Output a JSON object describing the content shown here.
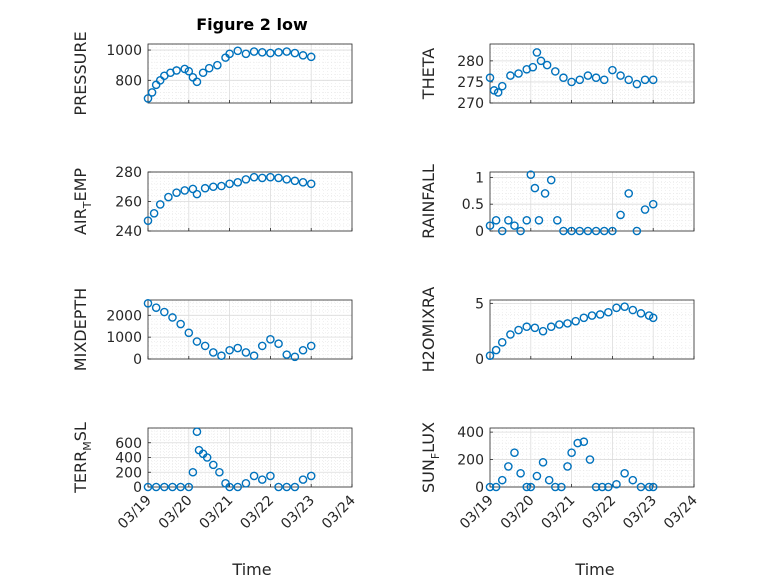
{
  "figure": {
    "title": "Figure 2 low",
    "xlabel": "Time"
  },
  "x_ticks": [
    "03/19",
    "03/20",
    "03/21",
    "03/22",
    "03/23",
    "03/24"
  ],
  "colors": {
    "marker": "#0072bd",
    "axis": "#262626",
    "grid": "#dcdcdc"
  },
  "chart_data": [
    {
      "type": "scatter",
      "id": "pressure",
      "ylabel": "PRESSURE",
      "ylabel_sub": "",
      "ylim": [
        650,
        1040
      ],
      "yticks": [
        800,
        1000
      ],
      "x": [
        0,
        0.1,
        0.2,
        0.3,
        0.4,
        0.55,
        0.7,
        0.9,
        1.0,
        1.1,
        1.2,
        1.35,
        1.5,
        1.7,
        1.9,
        2.0,
        2.2,
        2.4,
        2.6,
        2.8,
        3.0,
        3.2,
        3.4,
        3.6,
        3.8,
        4.0
      ],
      "y": [
        680,
        720,
        770,
        800,
        830,
        850,
        865,
        875,
        860,
        820,
        790,
        850,
        880,
        900,
        950,
        975,
        995,
        975,
        990,
        985,
        980,
        985,
        990,
        980,
        965,
        955
      ]
    },
    {
      "type": "scatter",
      "id": "theta",
      "ylabel": "THETA",
      "ylabel_sub": "",
      "ylim": [
        270,
        284
      ],
      "yticks": [
        270,
        275,
        280
      ],
      "x": [
        0,
        0.1,
        0.2,
        0.3,
        0.5,
        0.7,
        0.9,
        1.05,
        1.15,
        1.25,
        1.4,
        1.6,
        1.8,
        2.0,
        2.2,
        2.4,
        2.6,
        2.8,
        3.0,
        3.2,
        3.4,
        3.6,
        3.8,
        4.0
      ],
      "y": [
        276,
        273,
        272.5,
        274,
        276.5,
        277,
        278,
        278.5,
        282,
        280,
        279,
        277.5,
        276,
        275,
        275.5,
        276.5,
        276,
        275.5,
        277.8,
        276.5,
        275.5,
        274.5,
        275.5,
        275.5
      ]
    },
    {
      "type": "scatter",
      "id": "air_temp",
      "ylabel": "AIR",
      "ylabel_sub": "T",
      "ylabel_rest": "EMP",
      "ylim": [
        240,
        280
      ],
      "yticks": [
        240,
        260,
        280
      ],
      "x": [
        0,
        0.15,
        0.3,
        0.5,
        0.7,
        0.9,
        1.1,
        1.2,
        1.4,
        1.6,
        1.8,
        2.0,
        2.2,
        2.4,
        2.6,
        2.8,
        3.0,
        3.2,
        3.4,
        3.6,
        3.8,
        4.0
      ],
      "y": [
        247,
        252,
        258,
        263,
        266,
        267.5,
        268.5,
        265,
        269,
        270,
        270.5,
        272,
        273,
        275,
        276.5,
        276,
        276.5,
        276,
        275,
        274,
        273,
        272
      ]
    },
    {
      "type": "scatter",
      "id": "rainfall",
      "ylabel": "RAINFALL",
      "ylabel_sub": "",
      "ylim": [
        0,
        1.1
      ],
      "yticks": [
        0,
        0.5,
        1
      ],
      "x": [
        0,
        0.15,
        0.3,
        0.45,
        0.6,
        0.75,
        0.9,
        1.0,
        1.1,
        1.2,
        1.35,
        1.5,
        1.65,
        1.8,
        2.0,
        2.2,
        2.4,
        2.6,
        2.8,
        3.0,
        3.2,
        3.4,
        3.6,
        3.8,
        4.0
      ],
      "y": [
        0.1,
        0.2,
        0,
        0.2,
        0.1,
        0,
        0.2,
        1.05,
        0.8,
        0.2,
        0.7,
        0.95,
        0.2,
        0,
        0,
        0,
        0,
        0,
        0,
        0,
        0.3,
        0.7,
        0,
        0.4,
        0.5
      ]
    },
    {
      "type": "scatter",
      "id": "mixdepth",
      "ylabel": "MIXDEPTH",
      "ylabel_sub": "",
      "ylim": [
        0,
        2700
      ],
      "yticks": [
        0,
        1000,
        2000
      ],
      "x": [
        0,
        0.2,
        0.4,
        0.6,
        0.8,
        1.0,
        1.2,
        1.4,
        1.6,
        1.8,
        2.0,
        2.2,
        2.4,
        2.6,
        2.8,
        3.0,
        3.2,
        3.4,
        3.6,
        3.8,
        4.0
      ],
      "y": [
        2550,
        2350,
        2150,
        1900,
        1600,
        1200,
        800,
        600,
        300,
        150,
        400,
        500,
        300,
        150,
        600,
        900,
        700,
        200,
        100,
        400,
        600
      ]
    },
    {
      "type": "scatter",
      "id": "h2omixra",
      "ylabel": "H2OMIXRA",
      "ylabel_sub": "",
      "ylim": [
        0,
        5.3
      ],
      "yticks": [
        0,
        5
      ],
      "x": [
        0,
        0.15,
        0.3,
        0.5,
        0.7,
        0.9,
        1.1,
        1.3,
        1.5,
        1.7,
        1.9,
        2.1,
        2.3,
        2.5,
        2.7,
        2.9,
        3.1,
        3.3,
        3.5,
        3.7,
        3.9,
        4.0
      ],
      "y": [
        0.3,
        0.8,
        1.5,
        2.2,
        2.6,
        2.9,
        2.8,
        2.5,
        2.9,
        3.1,
        3.2,
        3.4,
        3.7,
        3.9,
        4.0,
        4.2,
        4.6,
        4.7,
        4.4,
        4.1,
        3.9,
        3.7
      ]
    },
    {
      "type": "scatter",
      "id": "terr_msl",
      "ylabel": "TERR",
      "ylabel_sub": "M",
      "ylabel_rest": "SL",
      "ylim": [
        0,
        800
      ],
      "yticks": [
        0,
        200,
        400,
        600
      ],
      "x": [
        0,
        0.2,
        0.4,
        0.6,
        0.8,
        1.0,
        1.1,
        1.2,
        1.25,
        1.35,
        1.45,
        1.6,
        1.75,
        1.9,
        2.0,
        2.2,
        2.4,
        2.6,
        2.8,
        3.0,
        3.2,
        3.4,
        3.6,
        3.8,
        4.0
      ],
      "y": [
        0,
        0,
        0,
        0,
        0,
        0,
        200,
        750,
        500,
        450,
        400,
        300,
        200,
        50,
        0,
        0,
        50,
        150,
        100,
        150,
        0,
        0,
        0,
        100,
        150
      ]
    },
    {
      "type": "scatter",
      "id": "sun_flux",
      "ylabel": "SUN",
      "ylabel_sub": "F",
      "ylabel_rest": "LUX",
      "ylim": [
        0,
        430
      ],
      "yticks": [
        0,
        200,
        400
      ],
      "x": [
        0,
        0.15,
        0.3,
        0.45,
        0.6,
        0.75,
        0.9,
        1.0,
        1.15,
        1.3,
        1.45,
        1.6,
        1.75,
        1.9,
        2.0,
        2.15,
        2.3,
        2.45,
        2.6,
        2.75,
        2.9,
        3.1,
        3.3,
        3.5,
        3.7,
        3.9,
        4.0
      ],
      "y": [
        0,
        0,
        50,
        150,
        250,
        100,
        0,
        0,
        80,
        180,
        50,
        0,
        0,
        150,
        250,
        320,
        330,
        200,
        0,
        0,
        0,
        20,
        100,
        50,
        0,
        0,
        0
      ]
    }
  ]
}
